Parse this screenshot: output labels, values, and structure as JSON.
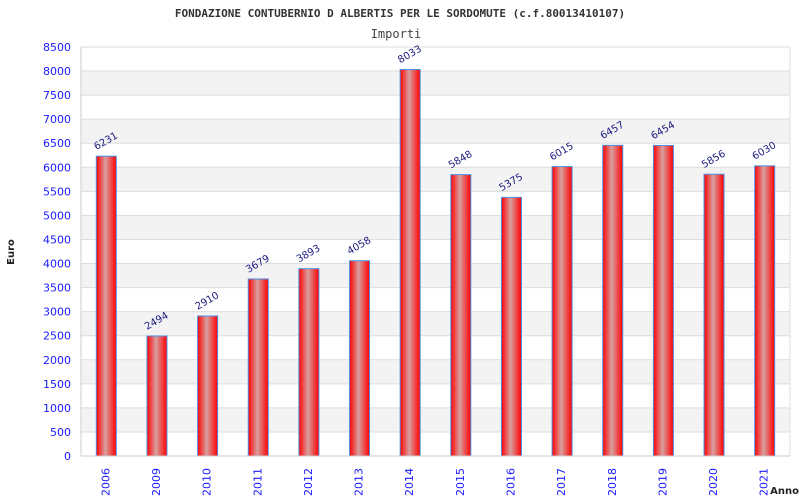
{
  "chart_data": {
    "type": "bar",
    "title": "FONDAZIONE CONTUBERNIO D ALBERTIS PER LE SORDOMUTE (c.f.80013410107)",
    "subtitle": "Importi",
    "xlabel": "Anno",
    "ylabel": "Euro",
    "ylim": [
      0,
      8500
    ],
    "yticks": [
      0,
      500,
      1000,
      1500,
      2000,
      2500,
      3000,
      3500,
      4000,
      4500,
      5000,
      5500,
      6000,
      6500,
      7000,
      7500,
      8000,
      8500
    ],
    "categories": [
      "2006",
      "2009",
      "2010",
      "2011",
      "2012",
      "2013",
      "2014",
      "2015",
      "2016",
      "2017",
      "2018",
      "2019",
      "2020",
      "2021"
    ],
    "values": [
      6231,
      2494,
      2910,
      3679,
      3893,
      4058,
      8033,
      5848,
      5375,
      6015,
      6457,
      6454,
      5856,
      6030
    ],
    "grid": true,
    "bar_color": "#ff0000",
    "bar_border": "#4a90e2"
  }
}
